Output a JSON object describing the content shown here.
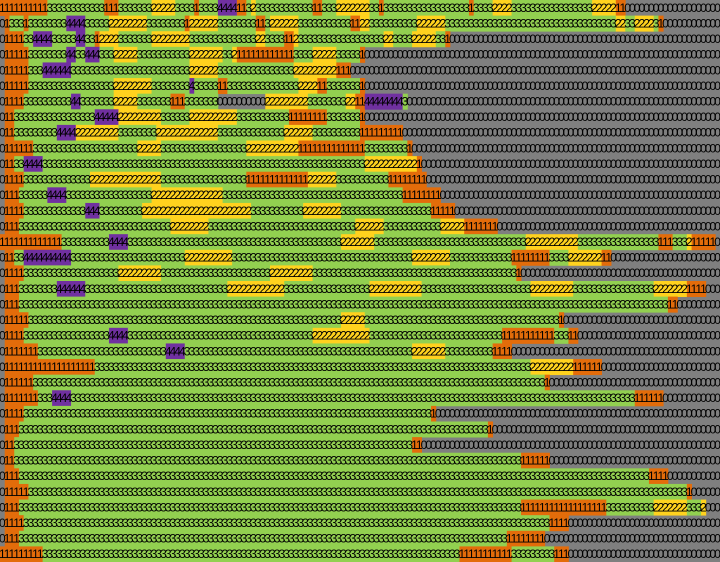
{
  "legend": {
    "0": {
      "color": "#7f7f7f",
      "label": "0"
    },
    "1": {
      "color": "#e36c0a",
      "label": "1"
    },
    "2": {
      "color": "#ffd21e",
      "label": "2"
    },
    "3": {
      "color": "#92d050",
      "label": "3"
    },
    "4": {
      "color": "#7030a0",
      "label": "4"
    }
  },
  "rows": [
    "11111111113333333333331113333333222223333133334444113233333333333311333222222233133333333333333333313333222233333333333333333222221100000000000000000000",
    "01333133333333444433333222222223333333312222223333333311322222233333333333112233333333332222223333333333333333333333333333333333332233222231000000000000",
    "01111334444333334433122223333333222222223333333333333322333311233333333333333333322333322222331000000000000000000000000000000000000000000000000000000000",
    "01111133333333443344433322222333333333332222222332111111111111333322222333331000000000000000000000000000000000000000000000000000000000000000000000000000",
    "01111133344444433333333333333333333333332222223333333333333333222222222111000000000000000000000000000000000000000000000000000000000000000000000000000000",
    "01111133333333333333333322222222333333334333331133333333333333322221133333331000000000000000000000000000000000000000000000000000000000000000000000000000",
    "01111333333333344333333322222333333311133333330000000000222222222333333332211444444443000000000000000000000000000000000000000000000000000000000000000000",
    "01133333333333333333444442222222223333332222222222333333333331111111133333331000000000000000000000000000000000000000000000000000000000000000000000000000",
    "01133333333344442222222223333333322222222222223333333333333322222233333333331111111110000000000000000000000000000000000000000000000000000000000000000000",
    "01111113333333333333333333333222223333333333333333332222222222211111111111111333333333100000000000000000000000000000000000000000000000000000000000000000",
    "01133444433333333333333333333333333333333333333333333333333333333333333333333222222222221000000000000000000000000000000000000000000000000000000000000000",
    "01111333333333333332222222222222223333333333333333331111111111111222222333333333331111111100000000000000000000000000000000000000000000000000000000000000",
    "01113333334444333333333333333333222222222222222333333333333333333333333333333333333331111111100000000000000000000000000000000000000000000000000000000000",
    "01111333333333333344433333333322222222222222222222222333333333332222222233333333333333333331111100000000000000000000000000000000000000000000000000000000",
    "01113333333333333333333333333333333322222222333333333333333333333333333333322222233333333333322222111111100000000000000000000000000000000000000000000000",
    "11111111111113333333333444433333333333333333333333333333333333333333333322222223333333333333333333333333333333322222222222333333333333333331113332111110",
    "01133444444444433333333333333333333333322222222223333333333333333333333333333333333333322222222333333333333311111111333322222221100000000000000000000000",
    "01111333333333333333333332222222223333333333333333333333322222222233333333333333333333333333333333333333333331000000000000000000000000000000000000000000",
    "01113333333344444433333333333333333333333333333322222222222233333333333333333322222222222333333333333333333333332222222223333333333333333322222221111000",
    "01113333333333333333333333333333333333333333333333333333333333333333333333333333333333333333333333333333333333333333333333333333333333333333311000000000",
    "01111133333333333333333333333333333333333333333333333333333333333333333322222333333333333333333333333333333333333333331000000000000000000000000000000000",
    "01111333333333333333333444433333333333333333333333333333333333333322222222222233333333333333333333333333331111111111133311000000000000000000000000000000",
    "01111111333333333333333333333333333444433333333333333333333333333333333333333333333333322222223333333333111100000000000000000000000000000000000000000000",
    "01111111111111111111333333333333333333333333333333333333333333333333333333333333333333333333333333333333333333332222222221111110000000000000000000000000",
    "01111113333333333333333333333333333333333333333333333333333333333333333333333333333333333333333333333333333333333331000000000000000000000000000000000000",
    "01111111333444433333333333333333333333333333333333333333333333333333333333333333333333333333333333333333333333333333333333333333333333111111000000000000",
    "01111333333333333333333333333333333333333333333333333333333333333333333333333333333333333331000000000000000000000000000000000000000000000000000000000000",
    "01113333333333333333333333333333333333333333333333333333333333333333333333333333333333333333333333333331000000000000000000000000000000000000000000000000",
    "01133333333333333333333333333333333333333333333333333333333333333333333333333333333333311000000000000000000000000000000000000000000000000000000000000000",
    "01133333333333333333333333333333333333333333333333333333333333333333333333333333333333333333333333333333333333111111000000000000000000000000000000000000",
    "01113333333333333333333333333333333333333333333333333333333333333333333333333333333333333333333333333333333333333333333333333333333333333111100000000000",
    "01111133333333333333333333333333333333333333333333333333333333333333333333333333333333333333333333333333333333333333333333333333333333333333333331000000",
    "01113333333333333333333333333333333333333333333333333333333333333333333333333333333333333333333333333333333333111111111111111111333333333322222223332000",
    "01111333333333333333333333333333333333333333333333333333333333333333333333333333333333333333333333333333333333333333111100000000000000000000000000000000",
    "01113333333333333333333333333333333333333333333333333333333333333333333333333333333333333333333333333333333111111110000000000000000000000000000000000000",
    "11111111133333333333333333333333333333333333333333333333333333333333333333333333333333333333333331111111111133333333311100000000000000000000000000000000"
  ]
}
